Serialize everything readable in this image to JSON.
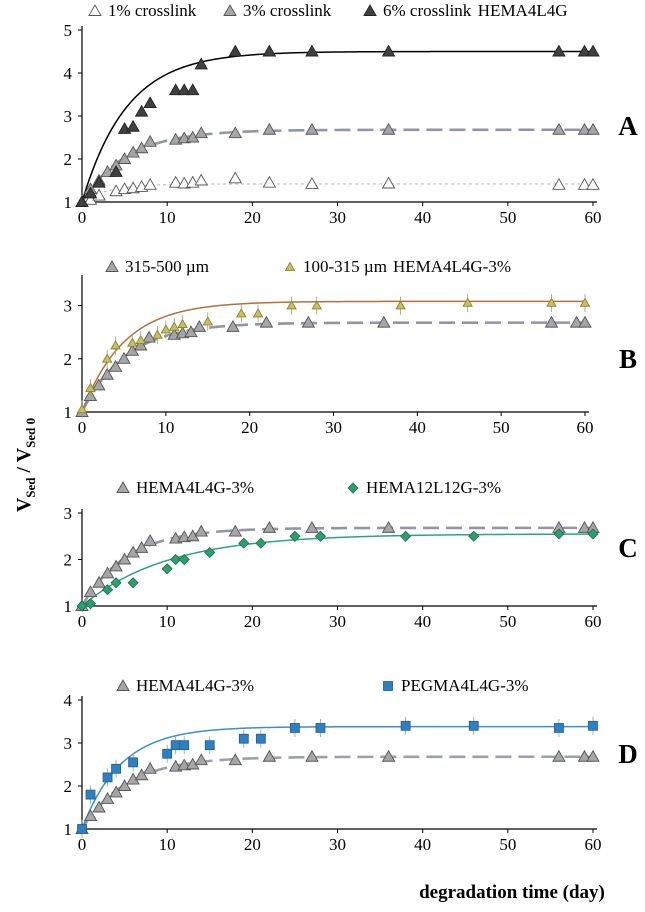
{
  "figure": {
    "ylabel_main": "V",
    "ylabel_sub1": "Sed",
    "ylabel_mid": " / V",
    "ylabel_sub2": "Sed 0",
    "xlabel": "degradation time (day)"
  },
  "chart_data": [
    {
      "type": "scatter",
      "panel": "A",
      "xlim": [
        0,
        60
      ],
      "ylim": [
        1,
        5
      ],
      "x_ticks": [
        0,
        10,
        20,
        30,
        40,
        50,
        60
      ],
      "y_ticks": [
        1,
        2,
        3,
        4,
        5
      ],
      "legend_prefix": "",
      "legend_suffix": "HEMA4L4G",
      "series": [
        {
          "name": "1% crosslink",
          "marker": "triangle-open",
          "color": "#808080",
          "fit": {
            "plateau": 1.42,
            "k": 0.32,
            "style": "dotted",
            "color": "#bdbdbd"
          },
          "points": [
            [
              0,
              1.0
            ],
            [
              1,
              1.05
            ],
            [
              2,
              1.15
            ],
            [
              4,
              1.25
            ],
            [
              5,
              1.3
            ],
            [
              6,
              1.32
            ],
            [
              7,
              1.35
            ],
            [
              8,
              1.4
            ],
            [
              11,
              1.45
            ],
            [
              12,
              1.43
            ],
            [
              13,
              1.45
            ],
            [
              14,
              1.5
            ],
            [
              18,
              1.55
            ],
            [
              22,
              1.45
            ],
            [
              27,
              1.42
            ],
            [
              36,
              1.43
            ],
            [
              56,
              1.4
            ],
            [
              59,
              1.4
            ],
            [
              60,
              1.4
            ]
          ]
        },
        {
          "name": "3% crosslink",
          "marker": "triangle-gray",
          "color": "#a6a6a6",
          "fit": {
            "plateau": 2.68,
            "k": 0.19,
            "style": "dashed",
            "color": "#8f96a6"
          },
          "points": [
            [
              0,
              1.0
            ],
            [
              1,
              1.3
            ],
            [
              2,
              1.5
            ],
            [
              3,
              1.7
            ],
            [
              4,
              1.85
            ],
            [
              5,
              2.0
            ],
            [
              6,
              2.15
            ],
            [
              7,
              2.25
            ],
            [
              8,
              2.4
            ],
            [
              11,
              2.45
            ],
            [
              12,
              2.48
            ],
            [
              13,
              2.5
            ],
            [
              14,
              2.6
            ],
            [
              18,
              2.6
            ],
            [
              22,
              2.68
            ],
            [
              27,
              2.68
            ],
            [
              36,
              2.68
            ],
            [
              56,
              2.68
            ],
            [
              59,
              2.68
            ],
            [
              60,
              2.68
            ]
          ]
        },
        {
          "name": "6% crosslink",
          "marker": "triangle-filled",
          "color": "#404040",
          "fit": {
            "plateau": 4.5,
            "k": 0.19,
            "style": "solid",
            "color": "#000000"
          },
          "points": [
            [
              0,
              1.0
            ],
            [
              1,
              1.2
            ],
            [
              2,
              1.45
            ],
            [
              4,
              1.7
            ],
            [
              5,
              2.7
            ],
            [
              6,
              2.75
            ],
            [
              7,
              3.1
            ],
            [
              8,
              3.3
            ],
            [
              11,
              3.6
            ],
            [
              12,
              3.6
            ],
            [
              13,
              3.6
            ],
            [
              14,
              4.2
            ],
            [
              18,
              4.5
            ],
            [
              22,
              4.5
            ],
            [
              27,
              4.5
            ],
            [
              36,
              4.5
            ],
            [
              56,
              4.5
            ],
            [
              59,
              4.5
            ],
            [
              60,
              4.5
            ]
          ]
        }
      ]
    },
    {
      "type": "scatter",
      "panel": "B",
      "xlim": [
        0,
        60
      ],
      "ylim": [
        1,
        3.5
      ],
      "x_ticks": [
        0,
        10,
        20,
        30,
        40,
        50,
        60
      ],
      "y_ticks": [
        1,
        2,
        3
      ],
      "legend_prefix": "",
      "legend_suffix": "HEMA4L4G-3%",
      "series": [
        {
          "name": "315-500 µm",
          "marker": "triangle-gray",
          "color": "#a6a6a6",
          "fit": {
            "plateau": 2.68,
            "k": 0.19,
            "style": "dashed",
            "color": "#8f96a6"
          },
          "points": [
            [
              0,
              1.0
            ],
            [
              1,
              1.3
            ],
            [
              2,
              1.5
            ],
            [
              3,
              1.7
            ],
            [
              4,
              1.85
            ],
            [
              5,
              2.0
            ],
            [
              6,
              2.15
            ],
            [
              7,
              2.25
            ],
            [
              8,
              2.4
            ],
            [
              11,
              2.45
            ],
            [
              12,
              2.48
            ],
            [
              13,
              2.5
            ],
            [
              14,
              2.6
            ],
            [
              18,
              2.6
            ],
            [
              22,
              2.68
            ],
            [
              27,
              2.68
            ],
            [
              36,
              2.68
            ],
            [
              56,
              2.68
            ],
            [
              59,
              2.68
            ],
            [
              60,
              2.68
            ]
          ]
        },
        {
          "name": "100-315 µm",
          "marker": "triangle-small",
          "color": "#c8c060",
          "fit": {
            "plateau": 3.08,
            "k": 0.2,
            "style": "solid",
            "color": "#b5703a"
          },
          "points": [
            [
              0,
              1.05
            ],
            [
              1,
              1.45
            ],
            [
              3,
              2.0
            ],
            [
              4,
              2.25
            ],
            [
              6,
              2.3
            ],
            [
              7,
              2.35
            ],
            [
              9,
              2.45
            ],
            [
              10,
              2.55
            ],
            [
              11,
              2.6
            ],
            [
              12,
              2.65
            ],
            [
              15,
              2.7
            ],
            [
              19,
              2.85
            ],
            [
              21,
              2.85
            ],
            [
              25,
              3.0
            ],
            [
              28,
              3.0
            ],
            [
              38,
              3.0
            ],
            [
              46,
              3.05
            ],
            [
              56,
              3.05
            ],
            [
              60,
              3.05
            ]
          ]
        }
      ]
    },
    {
      "type": "scatter",
      "panel": "C",
      "xlim": [
        0,
        60
      ],
      "ylim": [
        1,
        3
      ],
      "x_ticks": [
        0,
        10,
        20,
        30,
        40,
        50,
        60
      ],
      "y_ticks": [
        1,
        2,
        3
      ],
      "legend_prefix": "",
      "legend_suffix": "",
      "series": [
        {
          "name": "HEMA4L4G-3%",
          "marker": "triangle-gray",
          "color": "#a6a6a6",
          "fit": {
            "plateau": 2.68,
            "k": 0.19,
            "style": "dashed",
            "color": "#8f96a6"
          },
          "points": [
            [
              0,
              1.0
            ],
            [
              1,
              1.3
            ],
            [
              2,
              1.5
            ],
            [
              3,
              1.7
            ],
            [
              4,
              1.85
            ],
            [
              5,
              2.0
            ],
            [
              6,
              2.15
            ],
            [
              7,
              2.25
            ],
            [
              8,
              2.4
            ],
            [
              11,
              2.45
            ],
            [
              12,
              2.48
            ],
            [
              13,
              2.5
            ],
            [
              14,
              2.6
            ],
            [
              18,
              2.6
            ],
            [
              22,
              2.68
            ],
            [
              27,
              2.68
            ],
            [
              36,
              2.68
            ],
            [
              56,
              2.68
            ],
            [
              59,
              2.68
            ],
            [
              60,
              2.68
            ]
          ]
        },
        {
          "name": "HEMA12L12G-3%",
          "marker": "diamond",
          "color": "#2e9e6e",
          "fit": {
            "plateau": 2.55,
            "k": 0.1,
            "style": "solid",
            "color": "#2aa67a"
          },
          "points": [
            [
              0,
              1.0
            ],
            [
              1,
              1.05
            ],
            [
              3,
              1.35
            ],
            [
              4,
              1.5
            ],
            [
              6,
              1.5
            ],
            [
              10,
              1.8
            ],
            [
              11,
              2.0
            ],
            [
              12,
              2.0
            ],
            [
              15,
              2.15
            ],
            [
              19,
              2.35
            ],
            [
              21,
              2.35
            ],
            [
              25,
              2.5
            ],
            [
              28,
              2.5
            ],
            [
              38,
              2.5
            ],
            [
              46,
              2.5
            ],
            [
              56,
              2.55
            ],
            [
              60,
              2.55
            ]
          ]
        }
      ]
    },
    {
      "type": "scatter",
      "panel": "D",
      "xlim": [
        0,
        60
      ],
      "ylim": [
        1,
        4
      ],
      "x_ticks": [
        0,
        10,
        20,
        30,
        40,
        50,
        60
      ],
      "y_ticks": [
        1,
        2,
        3,
        4
      ],
      "legend_prefix": "",
      "legend_suffix": "",
      "series": [
        {
          "name": "HEMA4L4G-3%",
          "marker": "triangle-gray",
          "color": "#a6a6a6",
          "fit": {
            "plateau": 2.68,
            "k": 0.19,
            "style": "dashed",
            "color": "#9aa0ac"
          },
          "points": [
            [
              0,
              1.0
            ],
            [
              1,
              1.3
            ],
            [
              2,
              1.5
            ],
            [
              3,
              1.7
            ],
            [
              4,
              1.85
            ],
            [
              5,
              2.0
            ],
            [
              6,
              2.15
            ],
            [
              7,
              2.25
            ],
            [
              8,
              2.4
            ],
            [
              11,
              2.45
            ],
            [
              12,
              2.48
            ],
            [
              13,
              2.5
            ],
            [
              14,
              2.6
            ],
            [
              18,
              2.6
            ],
            [
              22,
              2.68
            ],
            [
              27,
              2.68
            ],
            [
              36,
              2.68
            ],
            [
              56,
              2.68
            ],
            [
              59,
              2.68
            ],
            [
              60,
              2.68
            ]
          ]
        },
        {
          "name": "PEGMA4L4G-3%",
          "marker": "square",
          "color": "#2f7fc1",
          "fit": {
            "plateau": 3.38,
            "k": 0.22,
            "style": "solid",
            "color": "#3b8fd0"
          },
          "points": [
            [
              0,
              1.0
            ],
            [
              1,
              1.8
            ],
            [
              3,
              2.2
            ],
            [
              4,
              2.4
            ],
            [
              6,
              2.55
            ],
            [
              10,
              2.75
            ],
            [
              11,
              2.95
            ],
            [
              12,
              2.95
            ],
            [
              15,
              2.95
            ],
            [
              19,
              3.1
            ],
            [
              21,
              3.1
            ],
            [
              25,
              3.35
            ],
            [
              28,
              3.35
            ],
            [
              38,
              3.4
            ],
            [
              46,
              3.4
            ],
            [
              56,
              3.35
            ],
            [
              60,
              3.4
            ]
          ]
        }
      ]
    }
  ]
}
